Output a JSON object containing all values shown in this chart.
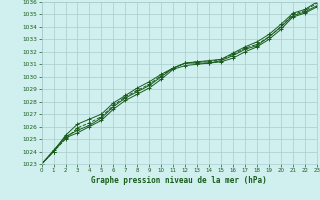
{
  "title": "Graphe pression niveau de la mer (hPa)",
  "xlabel_hours": [
    0,
    1,
    2,
    3,
    4,
    5,
    6,
    7,
    8,
    9,
    10,
    11,
    12,
    13,
    14,
    15,
    16,
    17,
    18,
    19,
    20,
    21,
    22,
    23
  ],
  "ylim": [
    1023,
    1036
  ],
  "xlim": [
    0,
    23
  ],
  "yticks": [
    1023,
    1024,
    1025,
    1026,
    1027,
    1028,
    1029,
    1030,
    1031,
    1032,
    1033,
    1034,
    1035,
    1036
  ],
  "background_color": "#d0f0f0",
  "grid_color": "#a8cccc",
  "line_color": "#1a5c1a",
  "series": [
    [
      1023.0,
      1024.1,
      1025.2,
      1025.7,
      1026.1,
      1026.7,
      1027.6,
      1028.3,
      1028.8,
      1029.3,
      1030.0,
      1030.7,
      1031.1,
      1031.1,
      1031.1,
      1031.3,
      1031.7,
      1032.2,
      1032.5,
      1033.2,
      1034.0,
      1034.9,
      1035.2,
      1035.7
    ],
    [
      1023.0,
      1024.0,
      1025.1,
      1025.5,
      1026.0,
      1026.5,
      1027.4,
      1028.1,
      1028.6,
      1029.1,
      1029.8,
      1030.6,
      1030.9,
      1031.0,
      1031.1,
      1031.2,
      1031.5,
      1032.0,
      1032.4,
      1033.0,
      1033.8,
      1034.8,
      1035.1,
      1035.6
    ],
    [
      1023.0,
      1024.0,
      1025.3,
      1026.2,
      1026.6,
      1027.0,
      1027.9,
      1028.5,
      1029.1,
      1029.6,
      1030.2,
      1030.7,
      1031.1,
      1031.2,
      1031.3,
      1031.4,
      1031.9,
      1032.4,
      1032.8,
      1033.4,
      1034.2,
      1035.1,
      1035.4,
      1036.0
    ],
    [
      1023.0,
      1024.0,
      1025.0,
      1025.9,
      1026.3,
      1026.8,
      1027.7,
      1028.4,
      1028.9,
      1029.4,
      1030.1,
      1030.7,
      1031.1,
      1031.2,
      1031.2,
      1031.4,
      1031.8,
      1032.3,
      1032.6,
      1033.2,
      1034.0,
      1035.0,
      1035.3,
      1035.9
    ]
  ],
  "linestyles": [
    "-",
    "-",
    "-",
    "--"
  ]
}
